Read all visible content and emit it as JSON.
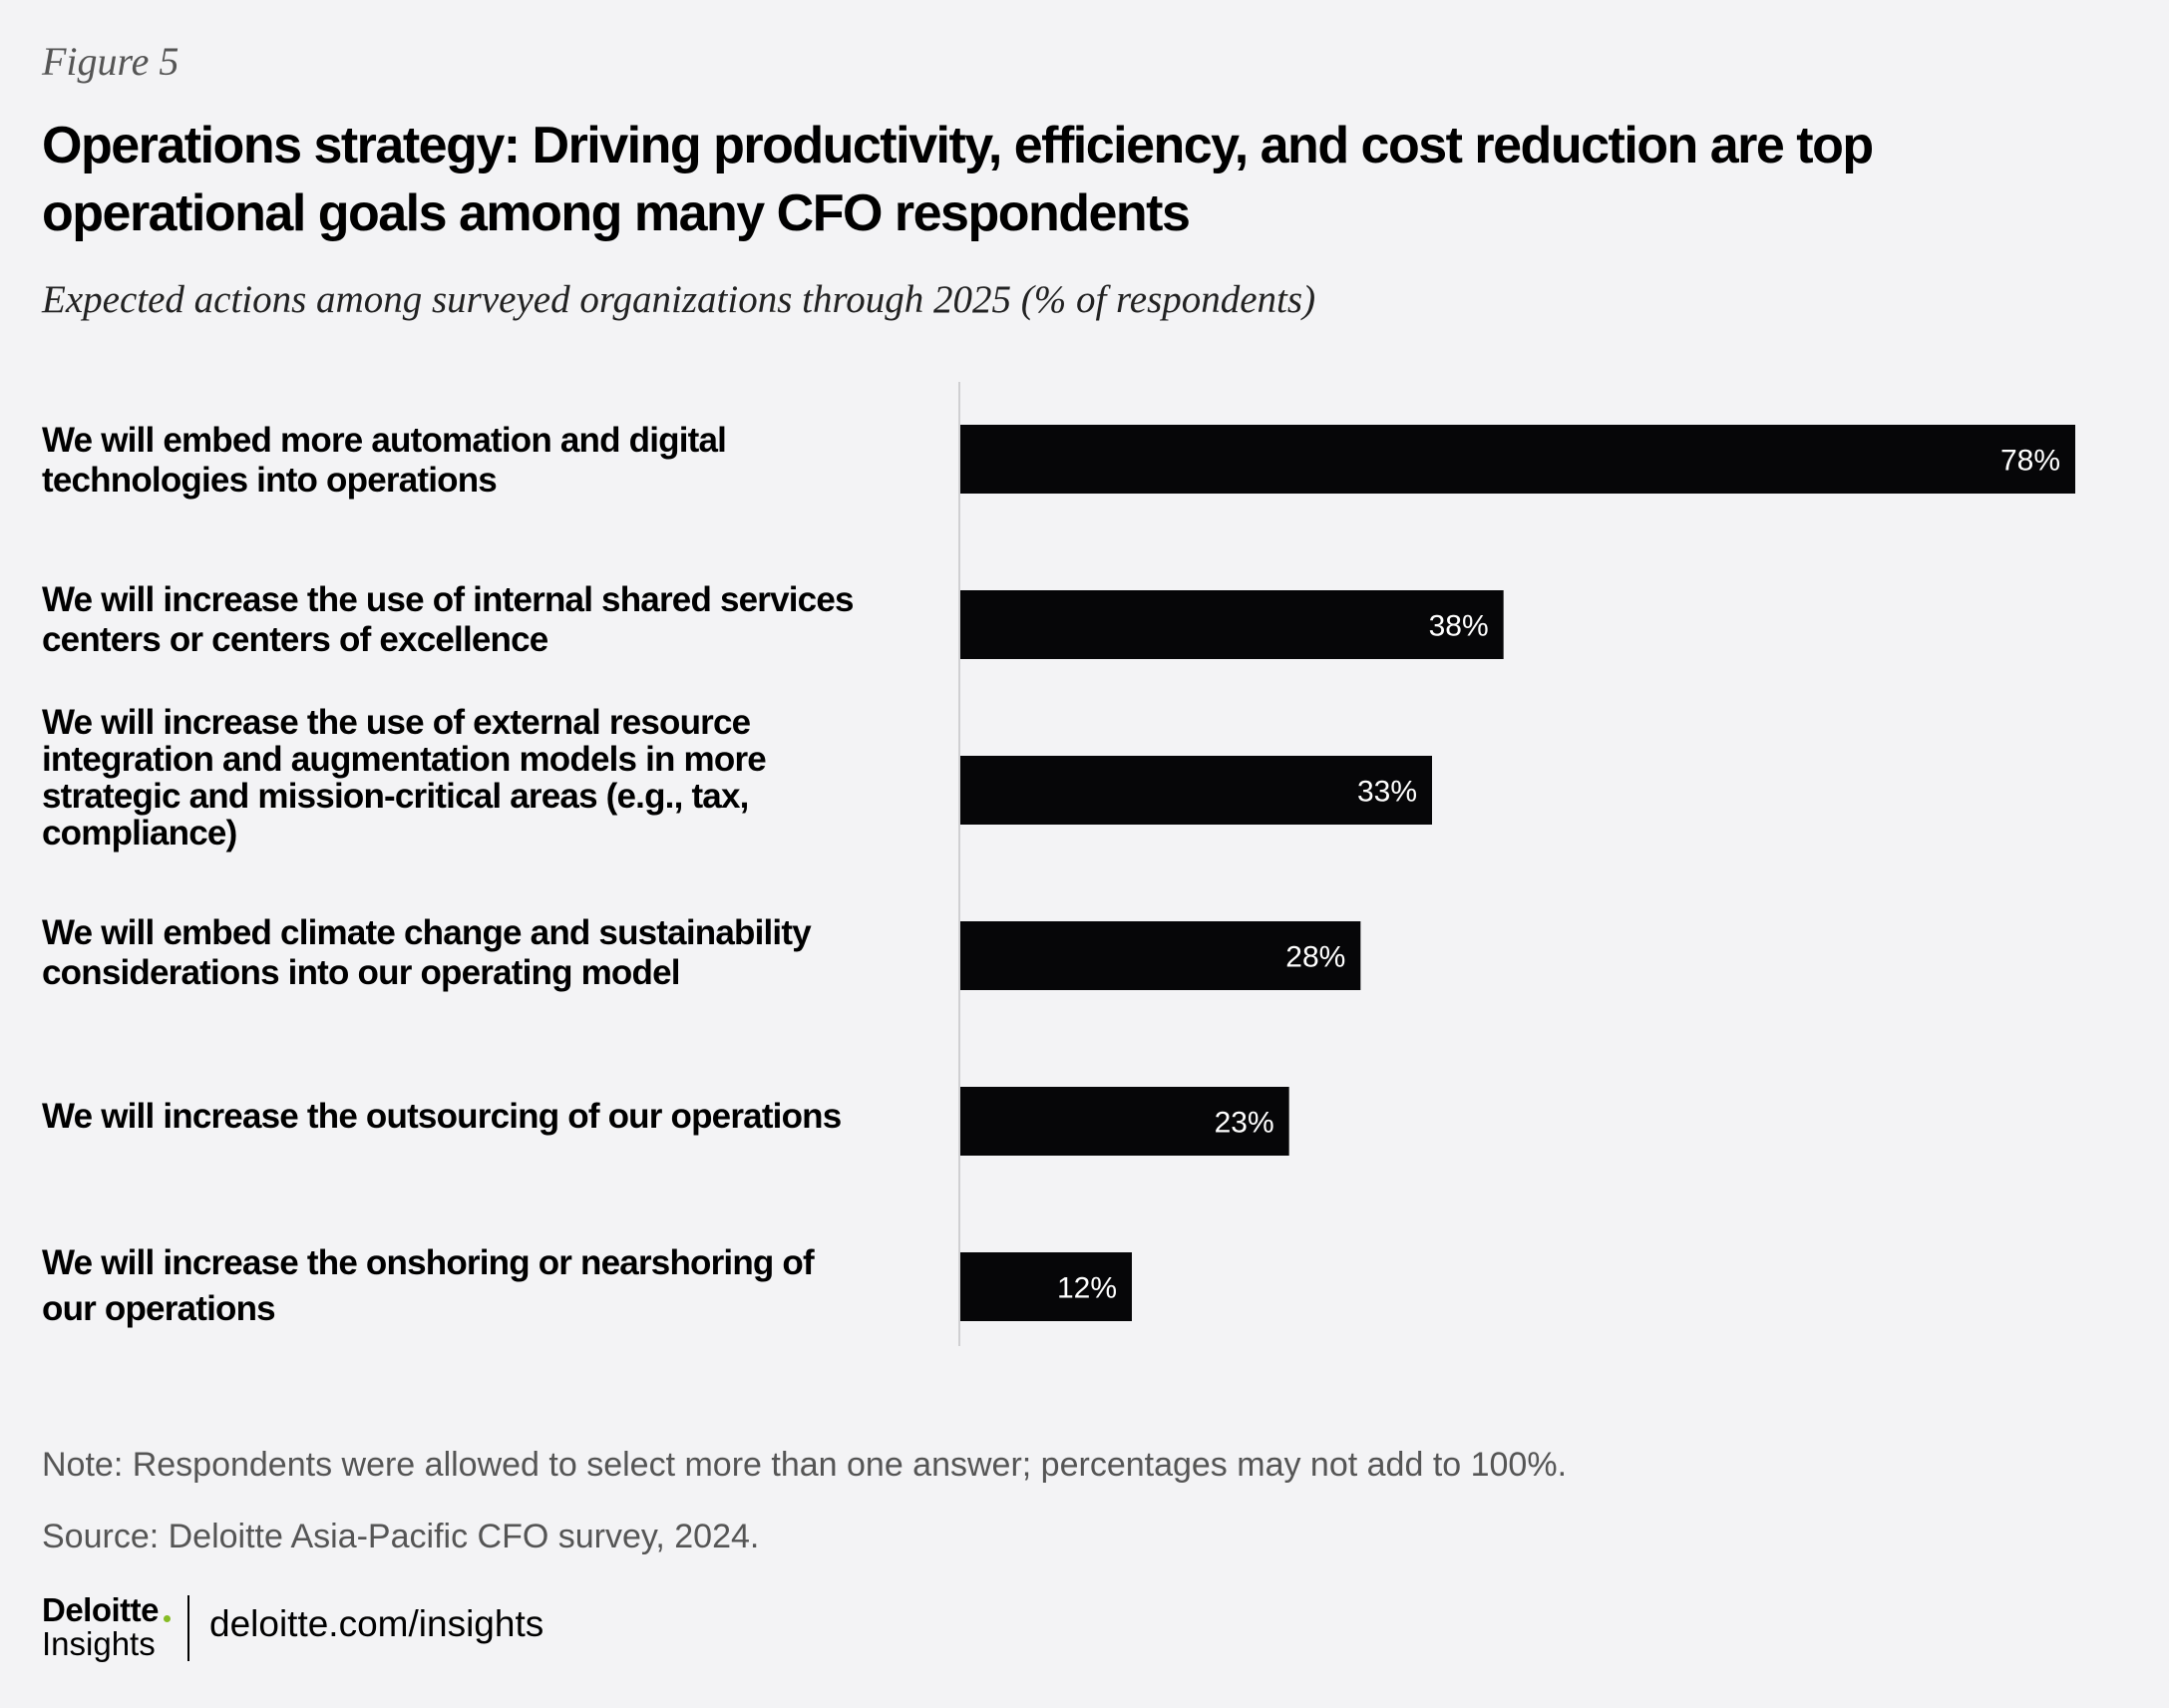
{
  "figure_label": "Figure 5",
  "title": "Operations strategy: Driving productivity, efficiency, and cost reduction are top operational goals among many CFO respondents",
  "subtitle": "Expected actions among surveyed organizations through 2025 (% of respondents)",
  "chart_data": {
    "type": "bar",
    "orientation": "horizontal",
    "title": "Operations strategy: Driving productivity, efficiency, and cost reduction are top operational goals among many CFO respondents",
    "subtitle": "Expected actions among surveyed organizations through 2025 (% of respondents)",
    "xlabel": "",
    "ylabel": "",
    "xlim": [
      0,
      78
    ],
    "grid": false,
    "legend": null,
    "categories": [
      "We will embed more automation and digital technologies into operations",
      "We will increase the use of internal shared services centers or centers of excellence",
      "We will increase the use of external resource integration and augmentation models in more strategic and mission-critical areas (e.g., tax, compliance)",
      "We will embed climate change and sustainability considerations into our operating model",
      "We will increase the outsourcing of our operations",
      "We will increase the onshoring or nearshoring of our operations"
    ],
    "values": [
      78,
      38,
      33,
      28,
      23,
      12
    ],
    "value_labels": [
      "78%",
      "38%",
      "33%",
      "28%",
      "23%",
      "12%"
    ],
    "bar_color": "#060608"
  },
  "note": "Note: Respondents were allowed to select more than one answer; percentages may not add to 100%.",
  "source": "Source: Deloitte Asia-Pacific CFO survey, 2024.",
  "brand": {
    "name": "Deloitte",
    "sub": "Insights",
    "url": "deloitte.com/insights",
    "accent_color": "#86bc25"
  }
}
